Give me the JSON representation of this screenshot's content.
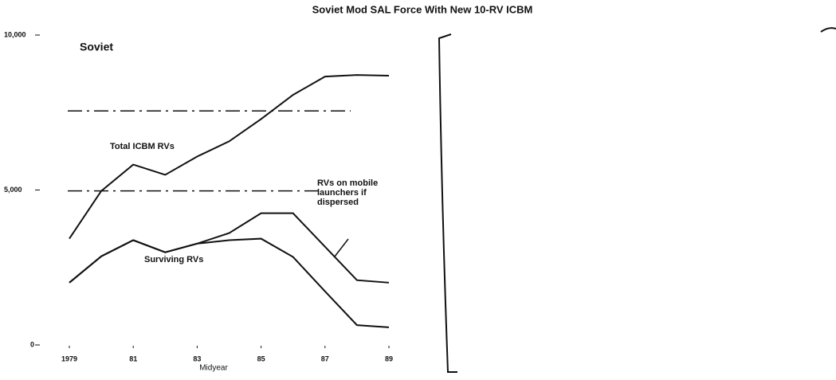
{
  "chart_data": {
    "type": "line",
    "title": "Soviet Mod SAL Force With New 10-RV ICBM",
    "subtitle": "Soviet",
    "x_label": "Midyear",
    "x": [
      1979,
      1980,
      1981,
      1982,
      1983,
      1984,
      1985,
      1986,
      1987,
      1988,
      1989
    ],
    "series": [
      {
        "name": "Total ICBM RVs",
        "color": "#111111",
        "values": [
          3430,
          4970,
          5820,
          5490,
          6080,
          6570,
          7290,
          8070,
          8660,
          8710,
          8690
        ]
      },
      {
        "name": "RVs on mobile launchers if dispersed",
        "color": "#111111",
        "values": [
          2010,
          2860,
          3380,
          2990,
          3270,
          3610,
          4250,
          4250,
          3170,
          2090,
          2010
        ]
      },
      {
        "name": "Surviving RVs",
        "color": "#111111",
        "values": [
          2010,
          2860,
          3380,
          2990,
          3270,
          3380,
          3430,
          2840,
          1730,
          640,
          570
        ]
      }
    ],
    "reference_lines": [
      7550,
      4970
    ],
    "xlim": [
      1979,
      1989
    ],
    "xticks": [
      1979,
      {
        "value": 1981,
        "label": "81"
      },
      {
        "value": 1983,
        "label": "83"
      },
      {
        "value": 1985,
        "label": "85"
      },
      {
        "value": 1987,
        "label": "87"
      },
      {
        "value": 1989,
        "label": "89"
      }
    ],
    "ylim": [
      0,
      10000
    ],
    "yticks": [
      0,
      {
        "value": 5000,
        "label": "5,000"
      },
      {
        "value": 10000,
        "label": "10,000"
      }
    ]
  }
}
